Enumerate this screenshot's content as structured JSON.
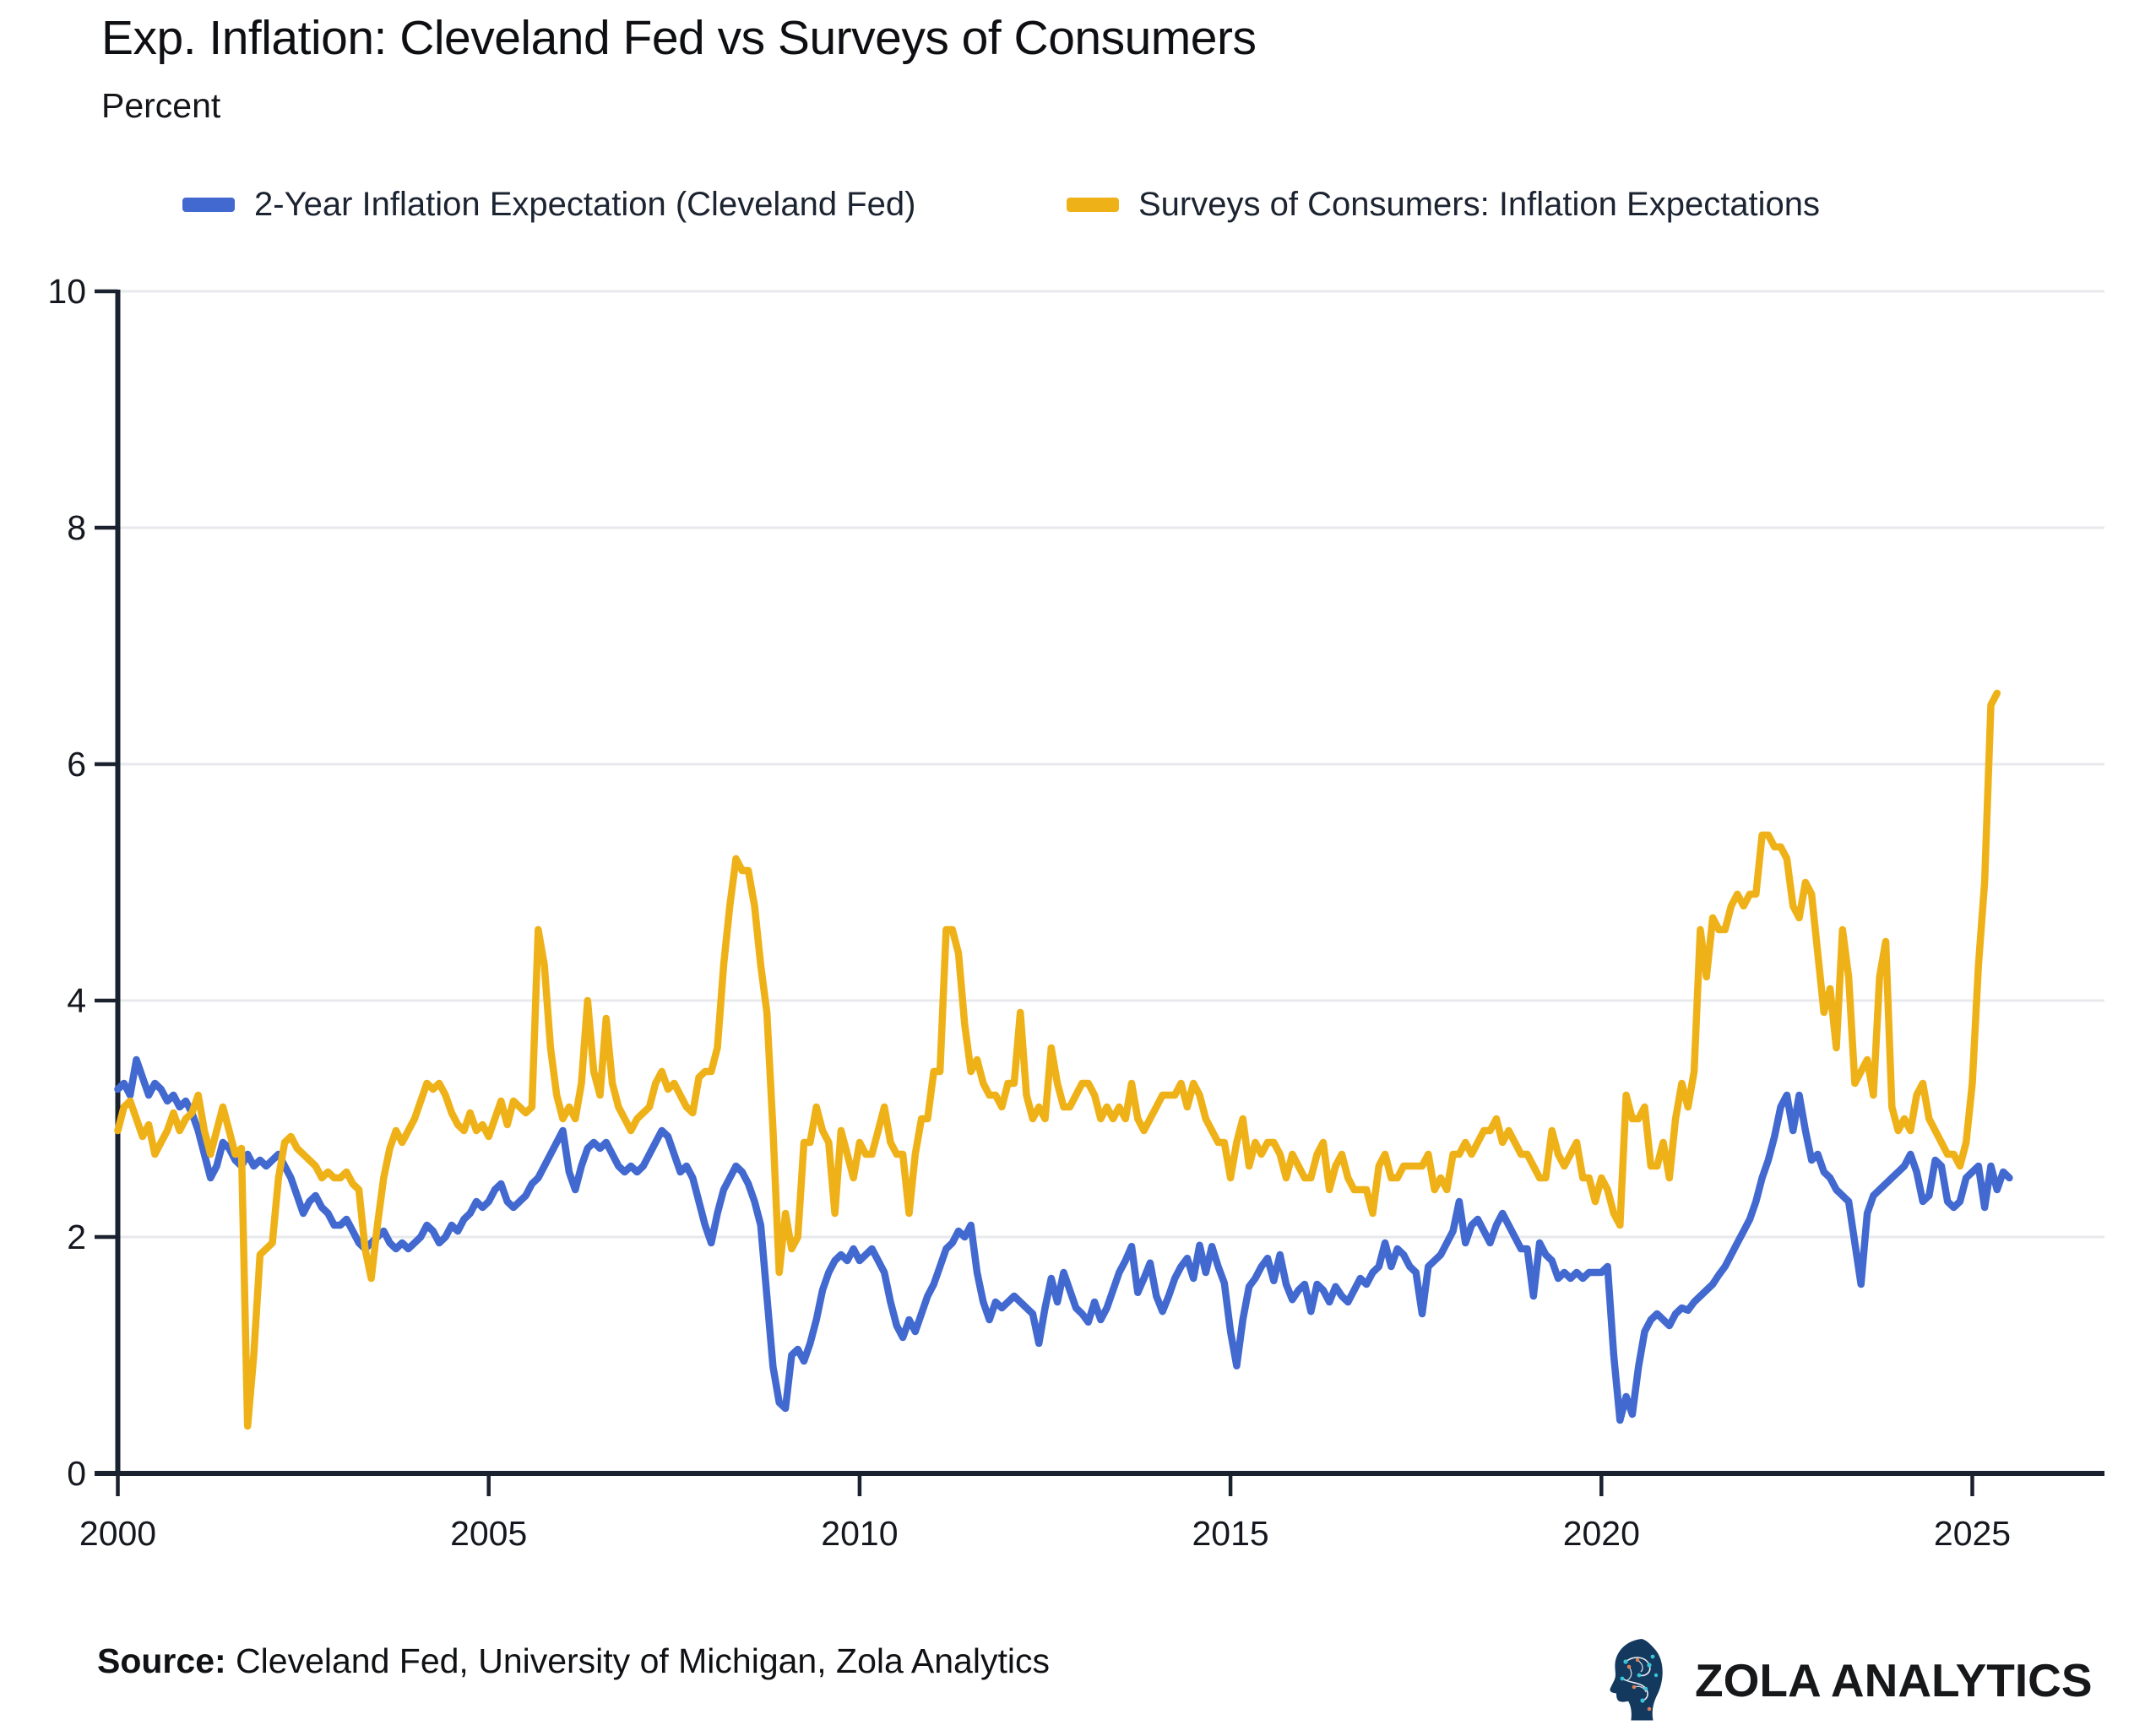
{
  "header": {
    "title": "Exp. Inflation: Cleveland Fed vs Surveys of Consumers",
    "subtitle": "Percent"
  },
  "legend": [
    {
      "label": "2-Year Inflation Expectation (Cleveland Fed)",
      "color": "#4269d0"
    },
    {
      "label": "Surveys of Consumers: Inflation Expectations",
      "color": "#efb118"
    }
  ],
  "footer": {
    "source_label": "Source:",
    "source_text": " Cleveland Fed, University of Michigan, Zola Analytics",
    "brand": "ZOLA ANALYTICS",
    "brand_icon": "circuit-head-icon"
  },
  "chart_data": {
    "type": "line",
    "title": "Exp. Inflation: Cleveland Fed vs Surveys of Consumers",
    "xlabel": "",
    "ylabel": "Percent",
    "x_axis": {
      "ticks": [
        2000,
        2005,
        2010,
        2015,
        2020,
        2025
      ],
      "range": [
        2000,
        2026.4
      ]
    },
    "y_axis": {
      "ticks": [
        0,
        2,
        4,
        6,
        8,
        10
      ],
      "range": [
        0,
        10
      ]
    },
    "grid": true,
    "legend_position": "top",
    "style": {
      "axis_color": "#1a212f",
      "grid_color": "#e8e9ec",
      "tick_label_color": "#15181f",
      "background": "#ffffff"
    },
    "series": [
      {
        "id": "cleveland_fed",
        "name": "2-Year Inflation Expectation (Cleveland Fed)",
        "color": "#4269d0",
        "start_year": 2000,
        "step_months": 1,
        "values": [
          3.25,
          3.3,
          3.2,
          3.5,
          3.35,
          3.2,
          3.3,
          3.25,
          3.15,
          3.2,
          3.1,
          3.15,
          3.05,
          2.9,
          2.7,
          2.5,
          2.6,
          2.8,
          2.75,
          2.65,
          2.6,
          2.7,
          2.6,
          2.65,
          2.6,
          2.65,
          2.7,
          2.6,
          2.5,
          2.35,
          2.2,
          2.3,
          2.35,
          2.25,
          2.2,
          2.1,
          2.1,
          2.15,
          2.05,
          1.95,
          1.9,
          1.95,
          2.0,
          2.05,
          1.95,
          1.9,
          1.95,
          1.9,
          1.95,
          2.0,
          2.1,
          2.05,
          1.95,
          2.0,
          2.1,
          2.05,
          2.15,
          2.2,
          2.3,
          2.25,
          2.3,
          2.4,
          2.45,
          2.3,
          2.25,
          2.3,
          2.35,
          2.45,
          2.5,
          2.6,
          2.7,
          2.8,
          2.9,
          2.55,
          2.4,
          2.6,
          2.75,
          2.8,
          2.75,
          2.8,
          2.7,
          2.6,
          2.55,
          2.6,
          2.55,
          2.6,
          2.7,
          2.8,
          2.9,
          2.85,
          2.7,
          2.55,
          2.6,
          2.5,
          2.3,
          2.1,
          1.95,
          2.2,
          2.4,
          2.5,
          2.6,
          2.55,
          2.45,
          2.3,
          2.1,
          1.5,
          0.9,
          0.6,
          0.55,
          1.0,
          1.05,
          0.95,
          1.1,
          1.3,
          1.55,
          1.7,
          1.8,
          1.85,
          1.8,
          1.9,
          1.8,
          1.85,
          1.9,
          1.8,
          1.7,
          1.45,
          1.25,
          1.15,
          1.3,
          1.2,
          1.35,
          1.5,
          1.6,
          1.75,
          1.9,
          1.95,
          2.05,
          2.0,
          2.1,
          1.7,
          1.45,
          1.3,
          1.45,
          1.4,
          1.45,
          1.5,
          1.45,
          1.4,
          1.35,
          1.1,
          1.4,
          1.65,
          1.45,
          1.7,
          1.55,
          1.4,
          1.35,
          1.28,
          1.45,
          1.3,
          1.4,
          1.55,
          1.7,
          1.8,
          1.92,
          1.53,
          1.65,
          1.78,
          1.5,
          1.37,
          1.5,
          1.65,
          1.75,
          1.82,
          1.65,
          1.93,
          1.7,
          1.92,
          1.75,
          1.61,
          1.2,
          0.91,
          1.3,
          1.58,
          1.65,
          1.75,
          1.82,
          1.63,
          1.85,
          1.6,
          1.47,
          1.55,
          1.6,
          1.37,
          1.6,
          1.55,
          1.45,
          1.58,
          1.5,
          1.45,
          1.55,
          1.65,
          1.6,
          1.7,
          1.75,
          1.95,
          1.75,
          1.9,
          1.85,
          1.75,
          1.7,
          1.35,
          1.75,
          1.8,
          1.85,
          1.95,
          2.05,
          2.3,
          1.95,
          2.1,
          2.15,
          2.05,
          1.95,
          2.1,
          2.2,
          2.1,
          2.0,
          1.9,
          1.9,
          1.5,
          1.95,
          1.85,
          1.8,
          1.65,
          1.7,
          1.65,
          1.7,
          1.65,
          1.7,
          1.7,
          1.7,
          1.75,
          1.0,
          0.45,
          0.65,
          0.5,
          0.9,
          1.2,
          1.3,
          1.35,
          1.3,
          1.25,
          1.35,
          1.4,
          1.38,
          1.45,
          1.5,
          1.55,
          1.6,
          1.68,
          1.75,
          1.85,
          1.95,
          2.05,
          2.15,
          2.3,
          2.5,
          2.65,
          2.85,
          3.1,
          3.2,
          2.9,
          3.2,
          2.9,
          2.65,
          2.7,
          2.55,
          2.5,
          2.4,
          2.35,
          2.3,
          1.95,
          1.6,
          2.2,
          2.35,
          2.4,
          2.45,
          2.5,
          2.55,
          2.6,
          2.7,
          2.55,
          2.3,
          2.35,
          2.65,
          2.6,
          2.3,
          2.25,
          2.3,
          2.5,
          2.55,
          2.6,
          2.25,
          2.6,
          2.4,
          2.55,
          2.5
        ]
      },
      {
        "id": "consumer_survey",
        "name": "Surveys of Consumers: Inflation Expectations",
        "color": "#efb118",
        "start_year": 2000,
        "step_months": 1,
        "values": [
          2.9,
          3.1,
          3.15,
          3.0,
          2.85,
          2.95,
          2.7,
          2.8,
          2.9,
          3.05,
          2.9,
          3.0,
          3.05,
          3.2,
          2.9,
          2.7,
          2.9,
          3.1,
          2.9,
          2.7,
          2.75,
          0.4,
          1.0,
          1.85,
          1.9,
          1.95,
          2.5,
          2.8,
          2.85,
          2.75,
          2.7,
          2.65,
          2.6,
          2.5,
          2.55,
          2.5,
          2.5,
          2.55,
          2.45,
          2.4,
          1.9,
          1.65,
          2.1,
          2.5,
          2.75,
          2.9,
          2.8,
          2.9,
          3.0,
          3.15,
          3.3,
          3.25,
          3.3,
          3.2,
          3.05,
          2.95,
          2.9,
          3.05,
          2.9,
          2.95,
          2.85,
          3.0,
          3.15,
          2.95,
          3.15,
          3.1,
          3.05,
          3.1,
          4.6,
          4.3,
          3.6,
          3.2,
          3.0,
          3.1,
          3.0,
          3.3,
          4.0,
          3.4,
          3.2,
          3.85,
          3.3,
          3.1,
          3.0,
          2.9,
          3.0,
          3.05,
          3.1,
          3.3,
          3.4,
          3.25,
          3.3,
          3.2,
          3.1,
          3.05,
          3.35,
          3.4,
          3.4,
          3.6,
          4.3,
          4.8,
          5.2,
          5.1,
          5.1,
          4.8,
          4.3,
          3.9,
          2.9,
          1.7,
          2.2,
          1.9,
          2.0,
          2.8,
          2.8,
          3.1,
          2.9,
          2.8,
          2.2,
          2.9,
          2.7,
          2.5,
          2.8,
          2.7,
          2.7,
          2.9,
          3.1,
          2.8,
          2.7,
          2.7,
          2.2,
          2.7,
          3.0,
          3.0,
          3.4,
          3.4,
          4.6,
          4.6,
          4.4,
          3.8,
          3.4,
          3.5,
          3.3,
          3.2,
          3.2,
          3.1,
          3.3,
          3.3,
          3.9,
          3.2,
          3.0,
          3.1,
          3.0,
          3.6,
          3.3,
          3.1,
          3.1,
          3.2,
          3.3,
          3.3,
          3.2,
          3.0,
          3.1,
          3.0,
          3.1,
          3.0,
          3.3,
          3.0,
          2.9,
          3.0,
          3.1,
          3.2,
          3.2,
          3.2,
          3.3,
          3.1,
          3.3,
          3.2,
          3.0,
          2.9,
          2.8,
          2.8,
          2.5,
          2.8,
          3.0,
          2.6,
          2.8,
          2.7,
          2.8,
          2.8,
          2.7,
          2.5,
          2.7,
          2.6,
          2.5,
          2.5,
          2.7,
          2.8,
          2.4,
          2.6,
          2.7,
          2.5,
          2.4,
          2.4,
          2.4,
          2.2,
          2.6,
          2.7,
          2.5,
          2.5,
          2.6,
          2.6,
          2.6,
          2.6,
          2.7,
          2.4,
          2.5,
          2.4,
          2.7,
          2.7,
          2.8,
          2.7,
          2.8,
          2.9,
          2.9,
          3.0,
          2.8,
          2.9,
          2.8,
          2.7,
          2.7,
          2.6,
          2.5,
          2.5,
          2.9,
          2.7,
          2.6,
          2.7,
          2.8,
          2.5,
          2.5,
          2.3,
          2.5,
          2.4,
          2.2,
          2.1,
          3.2,
          3.0,
          3.0,
          3.1,
          2.6,
          2.6,
          2.8,
          2.5,
          3.0,
          3.3,
          3.1,
          3.4,
          4.6,
          4.2,
          4.7,
          4.6,
          4.6,
          4.8,
          4.9,
          4.8,
          4.9,
          4.9,
          5.4,
          5.4,
          5.3,
          5.3,
          5.2,
          4.8,
          4.7,
          5.0,
          4.9,
          4.4,
          3.9,
          4.1,
          3.6,
          4.6,
          4.2,
          3.3,
          3.4,
          3.5,
          3.2,
          4.2,
          4.5,
          3.1,
          2.9,
          3.0,
          2.9,
          3.2,
          3.3,
          3.0,
          2.9,
          2.8,
          2.7,
          2.7,
          2.6,
          2.8,
          3.3,
          4.3,
          5.0,
          6.5,
          6.6
        ]
      }
    ]
  }
}
